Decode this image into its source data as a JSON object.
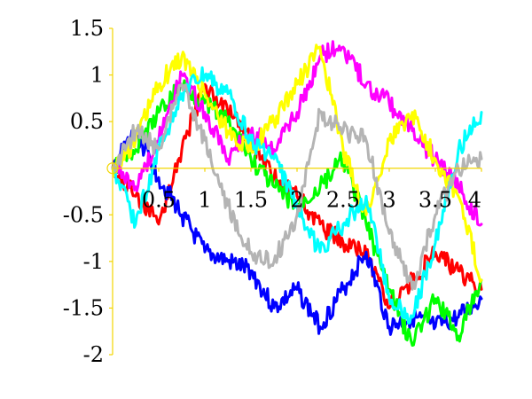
{
  "chart_data": {
    "type": "line",
    "title": "",
    "xlabel": "",
    "ylabel": "",
    "xlim": [
      0,
      4
    ],
    "ylim": [
      -2,
      1.5
    ],
    "grid": false,
    "legend": "none",
    "axis_color": "#f2d600",
    "x_ticks": [
      {
        "value": 0.5,
        "label": "0.5"
      },
      {
        "value": 1,
        "label": "1"
      },
      {
        "value": 1.5,
        "label": "1.5"
      },
      {
        "value": 2,
        "label": "2"
      },
      {
        "value": 2.5,
        "label": "2.5"
      },
      {
        "value": 3,
        "label": "3"
      },
      {
        "value": 3.5,
        "label": "3.5"
      },
      {
        "value": 4,
        "label": "4"
      }
    ],
    "y_ticks": [
      {
        "value": 1.5,
        "label": "1.5"
      },
      {
        "value": 1,
        "label": "1"
      },
      {
        "value": 0.5,
        "label": "0.5"
      },
      {
        "value": -0.5,
        "label": "-0.5"
      },
      {
        "value": -1,
        "label": "-1"
      },
      {
        "value": -1.5,
        "label": "-1.5"
      },
      {
        "value": -2,
        "label": "-2"
      }
    ],
    "series": [
      {
        "color": "#ff0000",
        "x": [
          0,
          0.25,
          0.5,
          0.75,
          1,
          1.25,
          1.5,
          1.75,
          2,
          2.25,
          2.5,
          2.75,
          3,
          3.25,
          3.5,
          3.75,
          4
        ],
        "values": [
          0,
          -0.3,
          -0.6,
          0.2,
          0.9,
          0.6,
          0.3,
          -0.1,
          -0.3,
          -0.6,
          -0.8,
          -0.9,
          -1.5,
          -1.2,
          -0.9,
          -1.1,
          -1.3
        ]
      },
      {
        "color": "#0000ff",
        "x": [
          0,
          0.25,
          0.5,
          0.75,
          1,
          1.25,
          1.5,
          1.75,
          2,
          2.25,
          2.5,
          2.75,
          3,
          3.25,
          3.5,
          3.75,
          4
        ],
        "values": [
          0,
          0.4,
          -0.1,
          -0.5,
          -0.9,
          -1.0,
          -1.1,
          -1.5,
          -1.3,
          -1.7,
          -1.3,
          -0.9,
          -1.7,
          -1.6,
          -1.7,
          -1.6,
          -1.4
        ]
      },
      {
        "color": "#00ff00",
        "x": [
          0,
          0.25,
          0.5,
          0.75,
          1,
          1.25,
          1.5,
          1.75,
          2,
          2.25,
          2.5,
          2.75,
          3,
          3.25,
          3.5,
          3.75,
          4
        ],
        "values": [
          0,
          0.2,
          0.6,
          0.9,
          0.7,
          0.5,
          0.1,
          -0.2,
          -0.4,
          -0.2,
          0.1,
          -0.6,
          -1.3,
          -1.9,
          -1.4,
          -1.8,
          -1.2
        ]
      },
      {
        "color": "#ff00ff",
        "x": [
          0,
          0.25,
          0.5,
          0.75,
          1,
          1.25,
          1.5,
          1.75,
          2,
          2.25,
          2.5,
          2.75,
          3,
          3.25,
          3.5,
          3.75,
          4
        ],
        "values": [
          0,
          -0.2,
          0.3,
          1.0,
          0.6,
          0.1,
          0.4,
          0.2,
          0.6,
          1.2,
          1.3,
          0.9,
          0.7,
          0.4,
          0.1,
          -0.2,
          -0.6
        ]
      },
      {
        "color": "#ffff00",
        "x": [
          0,
          0.25,
          0.5,
          0.75,
          1,
          1.25,
          1.5,
          1.75,
          2,
          2.25,
          2.5,
          2.75,
          3,
          3.25,
          3.5,
          3.75,
          4
        ],
        "values": [
          0,
          0.3,
          0.9,
          1.2,
          0.8,
          0.4,
          0.2,
          0.5,
          0.9,
          1.3,
          0.2,
          -0.5,
          0.3,
          0.6,
          0.1,
          -0.3,
          -1.2
        ]
      },
      {
        "color": "#00ffff",
        "x": [
          0,
          0.25,
          0.5,
          0.75,
          1,
          1.25,
          1.5,
          1.75,
          2,
          2.25,
          2.5,
          2.75,
          3,
          3.25,
          3.5,
          3.75,
          4
        ],
        "values": [
          0,
          -0.6,
          0.2,
          0.8,
          1.0,
          0.8,
          0.3,
          0.1,
          -0.4,
          -0.9,
          -0.6,
          -0.3,
          -1.4,
          -1.6,
          -0.8,
          0.2,
          0.6
        ]
      },
      {
        "color": "#b4b4b4",
        "x": [
          0,
          0.25,
          0.5,
          0.75,
          1,
          1.25,
          1.5,
          1.75,
          2,
          2.25,
          2.5,
          2.75,
          3,
          3.25,
          3.5,
          3.75,
          4
        ],
        "values": [
          0,
          0.4,
          0.2,
          0.9,
          0.3,
          -0.4,
          -0.9,
          -1.0,
          -0.5,
          0.6,
          0.4,
          0.3,
          -0.7,
          -1.3,
          -0.5,
          0.0,
          0.1
        ]
      }
    ]
  }
}
